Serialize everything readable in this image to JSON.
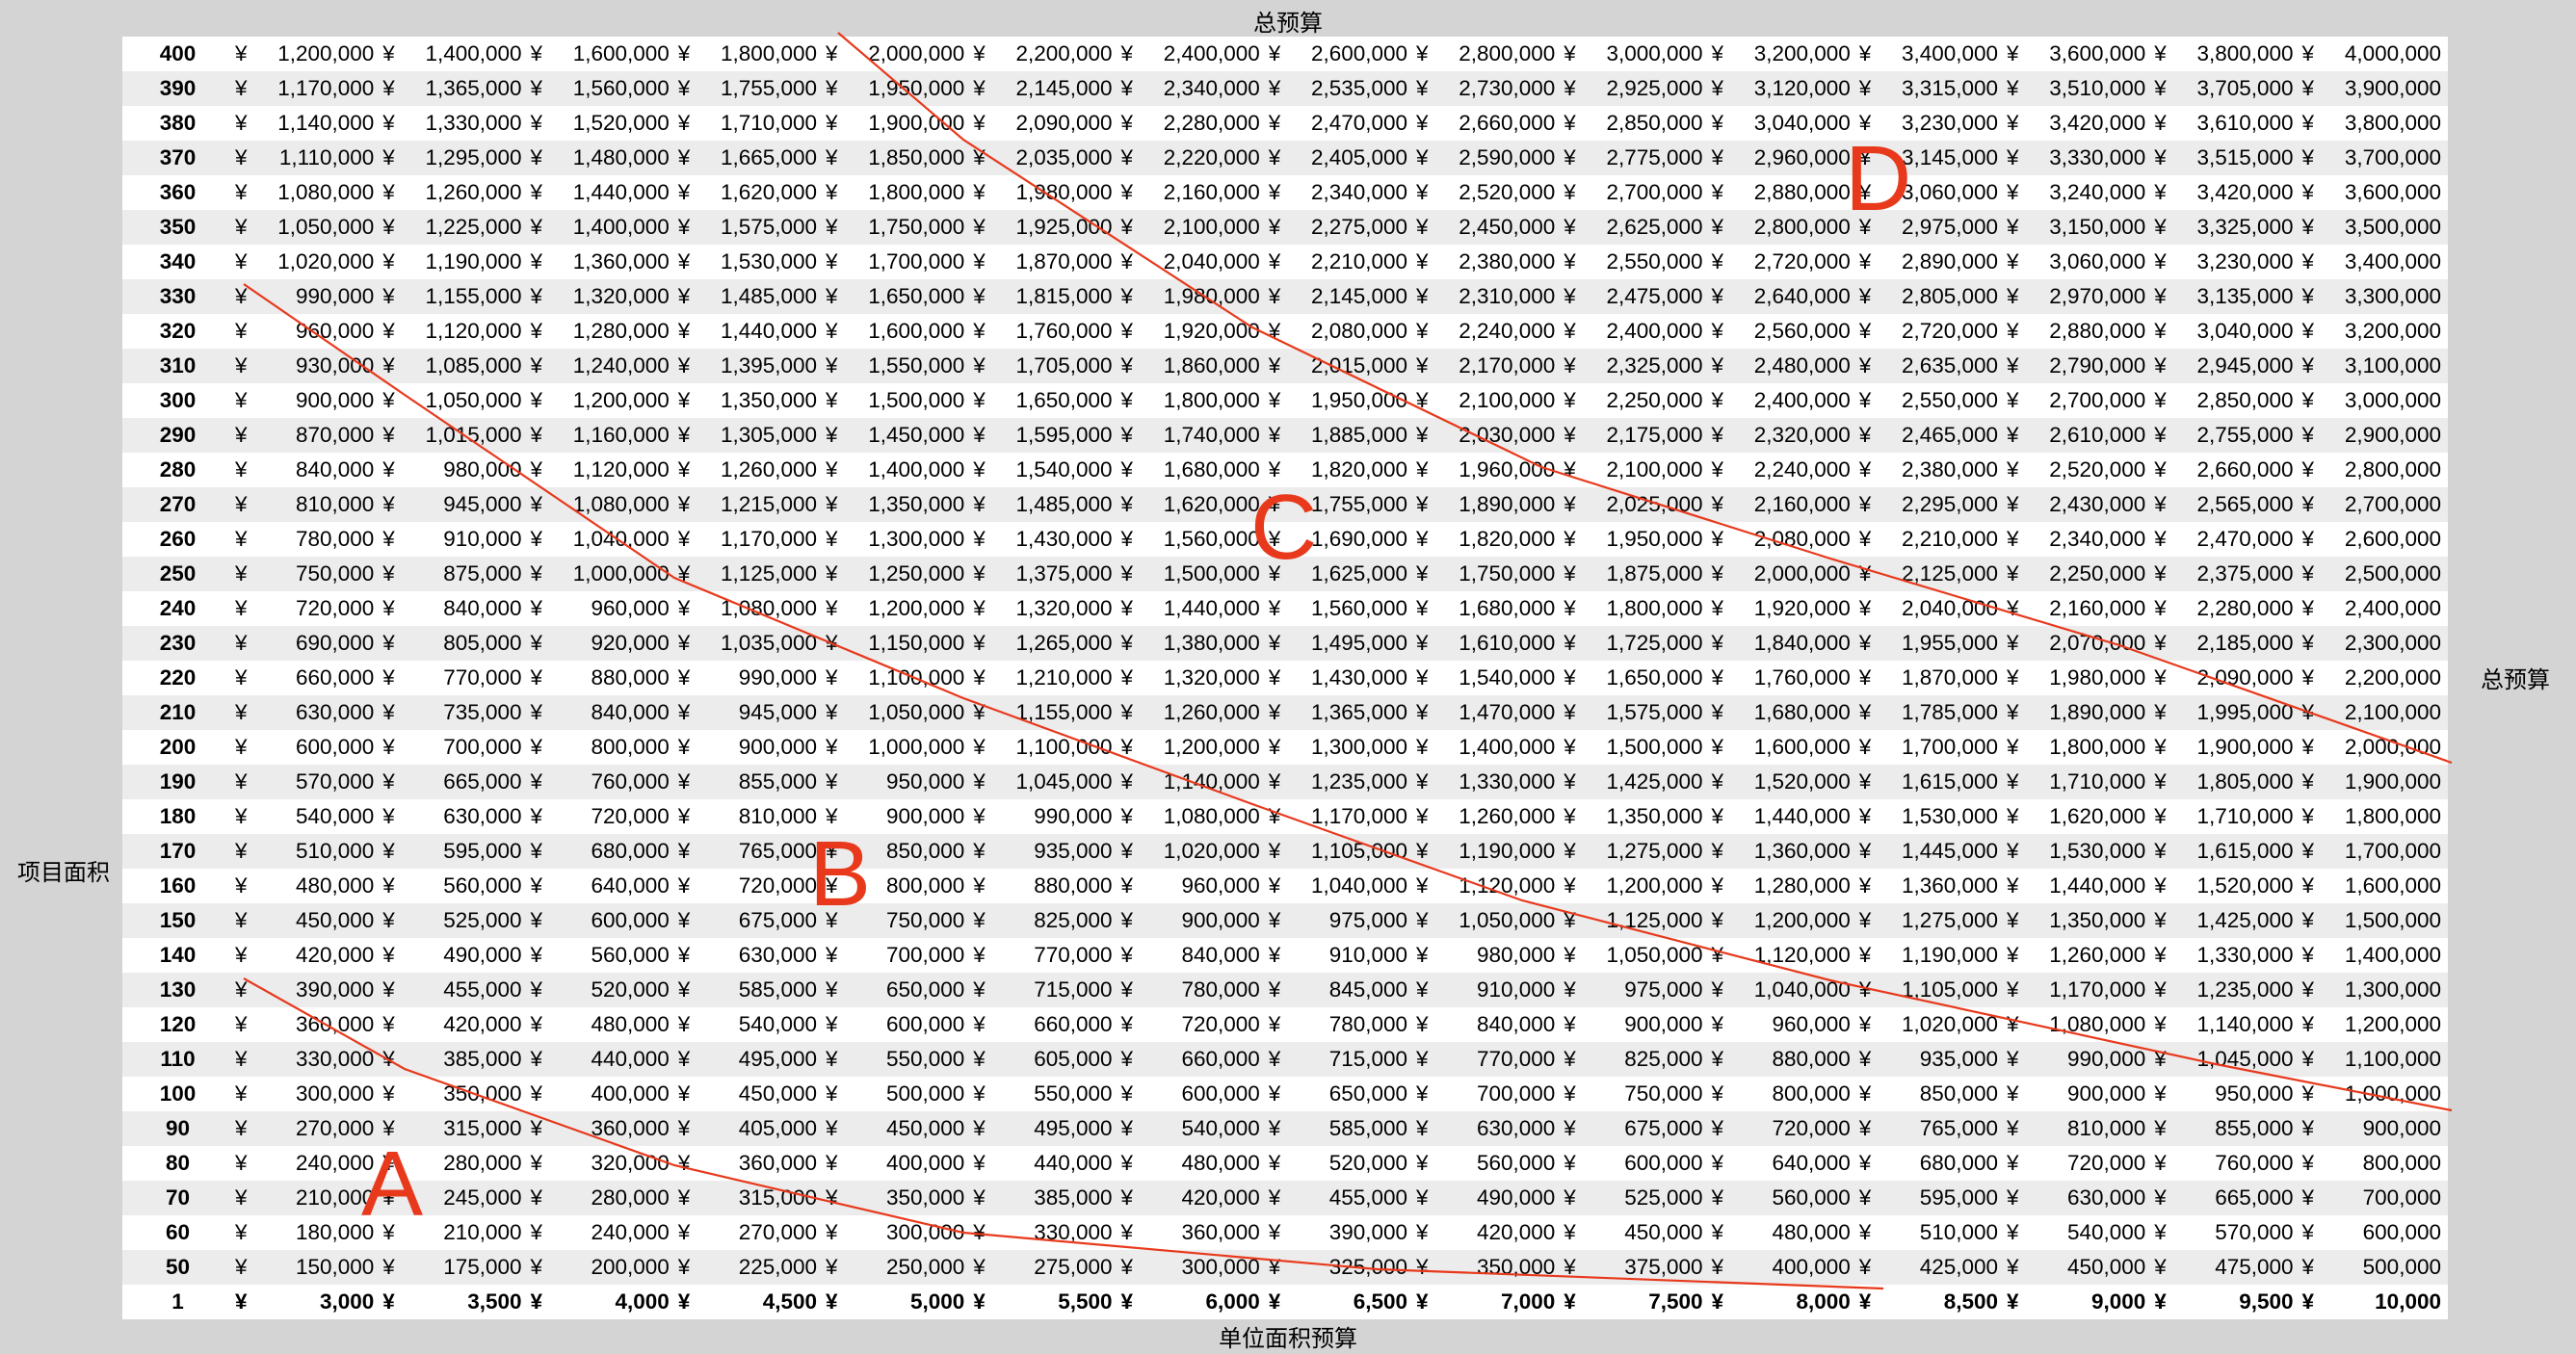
{
  "labels": {
    "top": "总预算",
    "bottom": "单位面积预算",
    "left": "项目面积",
    "right": "总预算"
  },
  "currency_symbol": "¥",
  "unit_prices": [
    "3,000",
    "3,500",
    "4,000",
    "4,500",
    "5,000",
    "5,500",
    "6,000",
    "6,500",
    "7,000",
    "7,500",
    "8,000",
    "8,500",
    "9,000",
    "9,500",
    "10,000"
  ],
  "rows": [
    {
      "area": "400",
      "values": [
        "1,200,000",
        "1,400,000",
        "1,600,000",
        "1,800,000",
        "2,000,000",
        "2,200,000",
        "2,400,000",
        "2,600,000",
        "2,800,000",
        "3,000,000",
        "3,200,000",
        "3,400,000",
        "3,600,000",
        "3,800,000",
        "4,000,000"
      ]
    },
    {
      "area": "390",
      "values": [
        "1,170,000",
        "1,365,000",
        "1,560,000",
        "1,755,000",
        "1,950,000",
        "2,145,000",
        "2,340,000",
        "2,535,000",
        "2,730,000",
        "2,925,000",
        "3,120,000",
        "3,315,000",
        "3,510,000",
        "3,705,000",
        "3,900,000"
      ]
    },
    {
      "area": "380",
      "values": [
        "1,140,000",
        "1,330,000",
        "1,520,000",
        "1,710,000",
        "1,900,000",
        "2,090,000",
        "2,280,000",
        "2,470,000",
        "2,660,000",
        "2,850,000",
        "3,040,000",
        "3,230,000",
        "3,420,000",
        "3,610,000",
        "3,800,000"
      ]
    },
    {
      "area": "370",
      "values": [
        "1,110,000",
        "1,295,000",
        "1,480,000",
        "1,665,000",
        "1,850,000",
        "2,035,000",
        "2,220,000",
        "2,405,000",
        "2,590,000",
        "2,775,000",
        "2,960,000",
        "3,145,000",
        "3,330,000",
        "3,515,000",
        "3,700,000"
      ]
    },
    {
      "area": "360",
      "values": [
        "1,080,000",
        "1,260,000",
        "1,440,000",
        "1,620,000",
        "1,800,000",
        "1,980,000",
        "2,160,000",
        "2,340,000",
        "2,520,000",
        "2,700,000",
        "2,880,000",
        "3,060,000",
        "3,240,000",
        "3,420,000",
        "3,600,000"
      ]
    },
    {
      "area": "350",
      "values": [
        "1,050,000",
        "1,225,000",
        "1,400,000",
        "1,575,000",
        "1,750,000",
        "1,925,000",
        "2,100,000",
        "2,275,000",
        "2,450,000",
        "2,625,000",
        "2,800,000",
        "2,975,000",
        "3,150,000",
        "3,325,000",
        "3,500,000"
      ]
    },
    {
      "area": "340",
      "values": [
        "1,020,000",
        "1,190,000",
        "1,360,000",
        "1,530,000",
        "1,700,000",
        "1,870,000",
        "2,040,000",
        "2,210,000",
        "2,380,000",
        "2,550,000",
        "2,720,000",
        "2,890,000",
        "3,060,000",
        "3,230,000",
        "3,400,000"
      ]
    },
    {
      "area": "330",
      "values": [
        "990,000",
        "1,155,000",
        "1,320,000",
        "1,485,000",
        "1,650,000",
        "1,815,000",
        "1,980,000",
        "2,145,000",
        "2,310,000",
        "2,475,000",
        "2,640,000",
        "2,805,000",
        "2,970,000",
        "3,135,000",
        "3,300,000"
      ]
    },
    {
      "area": "320",
      "values": [
        "960,000",
        "1,120,000",
        "1,280,000",
        "1,440,000",
        "1,600,000",
        "1,760,000",
        "1,920,000",
        "2,080,000",
        "2,240,000",
        "2,400,000",
        "2,560,000",
        "2,720,000",
        "2,880,000",
        "3,040,000",
        "3,200,000"
      ]
    },
    {
      "area": "310",
      "values": [
        "930,000",
        "1,085,000",
        "1,240,000",
        "1,395,000",
        "1,550,000",
        "1,705,000",
        "1,860,000",
        "2,015,000",
        "2,170,000",
        "2,325,000",
        "2,480,000",
        "2,635,000",
        "2,790,000",
        "2,945,000",
        "3,100,000"
      ]
    },
    {
      "area": "300",
      "values": [
        "900,000",
        "1,050,000",
        "1,200,000",
        "1,350,000",
        "1,500,000",
        "1,650,000",
        "1,800,000",
        "1,950,000",
        "2,100,000",
        "2,250,000",
        "2,400,000",
        "2,550,000",
        "2,700,000",
        "2,850,000",
        "3,000,000"
      ]
    },
    {
      "area": "290",
      "values": [
        "870,000",
        "1,015,000",
        "1,160,000",
        "1,305,000",
        "1,450,000",
        "1,595,000",
        "1,740,000",
        "1,885,000",
        "2,030,000",
        "2,175,000",
        "2,320,000",
        "2,465,000",
        "2,610,000",
        "2,755,000",
        "2,900,000"
      ]
    },
    {
      "area": "280",
      "values": [
        "840,000",
        "980,000",
        "1,120,000",
        "1,260,000",
        "1,400,000",
        "1,540,000",
        "1,680,000",
        "1,820,000",
        "1,960,000",
        "2,100,000",
        "2,240,000",
        "2,380,000",
        "2,520,000",
        "2,660,000",
        "2,800,000"
      ]
    },
    {
      "area": "270",
      "values": [
        "810,000",
        "945,000",
        "1,080,000",
        "1,215,000",
        "1,350,000",
        "1,485,000",
        "1,620,000",
        "1,755,000",
        "1,890,000",
        "2,025,000",
        "2,160,000",
        "2,295,000",
        "2,430,000",
        "2,565,000",
        "2,700,000"
      ]
    },
    {
      "area": "260",
      "values": [
        "780,000",
        "910,000",
        "1,040,000",
        "1,170,000",
        "1,300,000",
        "1,430,000",
        "1,560,000",
        "1,690,000",
        "1,820,000",
        "1,950,000",
        "2,080,000",
        "2,210,000",
        "2,340,000",
        "2,470,000",
        "2,600,000"
      ]
    },
    {
      "area": "250",
      "values": [
        "750,000",
        "875,000",
        "1,000,000",
        "1,125,000",
        "1,250,000",
        "1,375,000",
        "1,500,000",
        "1,625,000",
        "1,750,000",
        "1,875,000",
        "2,000,000",
        "2,125,000",
        "2,250,000",
        "2,375,000",
        "2,500,000"
      ]
    },
    {
      "area": "240",
      "values": [
        "720,000",
        "840,000",
        "960,000",
        "1,080,000",
        "1,200,000",
        "1,320,000",
        "1,440,000",
        "1,560,000",
        "1,680,000",
        "1,800,000",
        "1,920,000",
        "2,040,000",
        "2,160,000",
        "2,280,000",
        "2,400,000"
      ]
    },
    {
      "area": "230",
      "values": [
        "690,000",
        "805,000",
        "920,000",
        "1,035,000",
        "1,150,000",
        "1,265,000",
        "1,380,000",
        "1,495,000",
        "1,610,000",
        "1,725,000",
        "1,840,000",
        "1,955,000",
        "2,070,000",
        "2,185,000",
        "2,300,000"
      ]
    },
    {
      "area": "220",
      "values": [
        "660,000",
        "770,000",
        "880,000",
        "990,000",
        "1,100,000",
        "1,210,000",
        "1,320,000",
        "1,430,000",
        "1,540,000",
        "1,650,000",
        "1,760,000",
        "1,870,000",
        "1,980,000",
        "2,090,000",
        "2,200,000"
      ]
    },
    {
      "area": "210",
      "values": [
        "630,000",
        "735,000",
        "840,000",
        "945,000",
        "1,050,000",
        "1,155,000",
        "1,260,000",
        "1,365,000",
        "1,470,000",
        "1,575,000",
        "1,680,000",
        "1,785,000",
        "1,890,000",
        "1,995,000",
        "2,100,000"
      ]
    },
    {
      "area": "200",
      "values": [
        "600,000",
        "700,000",
        "800,000",
        "900,000",
        "1,000,000",
        "1,100,000",
        "1,200,000",
        "1,300,000",
        "1,400,000",
        "1,500,000",
        "1,600,000",
        "1,700,000",
        "1,800,000",
        "1,900,000",
        "2,000,000"
      ]
    },
    {
      "area": "190",
      "values": [
        "570,000",
        "665,000",
        "760,000",
        "855,000",
        "950,000",
        "1,045,000",
        "1,140,000",
        "1,235,000",
        "1,330,000",
        "1,425,000",
        "1,520,000",
        "1,615,000",
        "1,710,000",
        "1,805,000",
        "1,900,000"
      ]
    },
    {
      "area": "180",
      "values": [
        "540,000",
        "630,000",
        "720,000",
        "810,000",
        "900,000",
        "990,000",
        "1,080,000",
        "1,170,000",
        "1,260,000",
        "1,350,000",
        "1,440,000",
        "1,530,000",
        "1,620,000",
        "1,710,000",
        "1,800,000"
      ]
    },
    {
      "area": "170",
      "values": [
        "510,000",
        "595,000",
        "680,000",
        "765,000",
        "850,000",
        "935,000",
        "1,020,000",
        "1,105,000",
        "1,190,000",
        "1,275,000",
        "1,360,000",
        "1,445,000",
        "1,530,000",
        "1,615,000",
        "1,700,000"
      ]
    },
    {
      "area": "160",
      "values": [
        "480,000",
        "560,000",
        "640,000",
        "720,000",
        "800,000",
        "880,000",
        "960,000",
        "1,040,000",
        "1,120,000",
        "1,200,000",
        "1,280,000",
        "1,360,000",
        "1,440,000",
        "1,520,000",
        "1,600,000"
      ]
    },
    {
      "area": "150",
      "values": [
        "450,000",
        "525,000",
        "600,000",
        "675,000",
        "750,000",
        "825,000",
        "900,000",
        "975,000",
        "1,050,000",
        "1,125,000",
        "1,200,000",
        "1,275,000",
        "1,350,000",
        "1,425,000",
        "1,500,000"
      ]
    },
    {
      "area": "140",
      "values": [
        "420,000",
        "490,000",
        "560,000",
        "630,000",
        "700,000",
        "770,000",
        "840,000",
        "910,000",
        "980,000",
        "1,050,000",
        "1,120,000",
        "1,190,000",
        "1,260,000",
        "1,330,000",
        "1,400,000"
      ]
    },
    {
      "area": "130",
      "values": [
        "390,000",
        "455,000",
        "520,000",
        "585,000",
        "650,000",
        "715,000",
        "780,000",
        "845,000",
        "910,000",
        "975,000",
        "1,040,000",
        "1,105,000",
        "1,170,000",
        "1,235,000",
        "1,300,000"
      ]
    },
    {
      "area": "120",
      "values": [
        "360,000",
        "420,000",
        "480,000",
        "540,000",
        "600,000",
        "660,000",
        "720,000",
        "780,000",
        "840,000",
        "900,000",
        "960,000",
        "1,020,000",
        "1,080,000",
        "1,140,000",
        "1,200,000"
      ]
    },
    {
      "area": "110",
      "values": [
        "330,000",
        "385,000",
        "440,000",
        "495,000",
        "550,000",
        "605,000",
        "660,000",
        "715,000",
        "770,000",
        "825,000",
        "880,000",
        "935,000",
        "990,000",
        "1,045,000",
        "1,100,000"
      ]
    },
    {
      "area": "100",
      "values": [
        "300,000",
        "350,000",
        "400,000",
        "450,000",
        "500,000",
        "550,000",
        "600,000",
        "650,000",
        "700,000",
        "750,000",
        "800,000",
        "850,000",
        "900,000",
        "950,000",
        "1,000,000"
      ]
    },
    {
      "area": "90",
      "values": [
        "270,000",
        "315,000",
        "360,000",
        "405,000",
        "450,000",
        "495,000",
        "540,000",
        "585,000",
        "630,000",
        "675,000",
        "720,000",
        "765,000",
        "810,000",
        "855,000",
        "900,000"
      ]
    },
    {
      "area": "80",
      "values": [
        "240,000",
        "280,000",
        "320,000",
        "360,000",
        "400,000",
        "440,000",
        "480,000",
        "520,000",
        "560,000",
        "600,000",
        "640,000",
        "680,000",
        "720,000",
        "760,000",
        "800,000"
      ]
    },
    {
      "area": "70",
      "values": [
        "210,000",
        "245,000",
        "280,000",
        "315,000",
        "350,000",
        "385,000",
        "420,000",
        "455,000",
        "490,000",
        "525,000",
        "560,000",
        "595,000",
        "630,000",
        "665,000",
        "700,000"
      ]
    },
    {
      "area": "60",
      "values": [
        "180,000",
        "210,000",
        "240,000",
        "270,000",
        "300,000",
        "330,000",
        "360,000",
        "390,000",
        "420,000",
        "450,000",
        "480,000",
        "510,000",
        "540,000",
        "570,000",
        "600,000"
      ]
    },
    {
      "area": "50",
      "values": [
        "150,000",
        "175,000",
        "200,000",
        "225,000",
        "250,000",
        "275,000",
        "300,000",
        "325,000",
        "350,000",
        "375,000",
        "400,000",
        "425,000",
        "450,000",
        "475,000",
        "500,000"
      ]
    },
    {
      "area": "1",
      "values": [
        "3,000",
        "3,500",
        "4,000",
        "4,500",
        "5,000",
        "5,500",
        "6,000",
        "6,500",
        "7,000",
        "7,500",
        "8,000",
        "8,500",
        "9,000",
        "9,500",
        "10,000"
      ]
    }
  ],
  "annotations": {
    "color": "#e8391c",
    "zones": [
      "A",
      "B",
      "C",
      "D"
    ]
  }
}
